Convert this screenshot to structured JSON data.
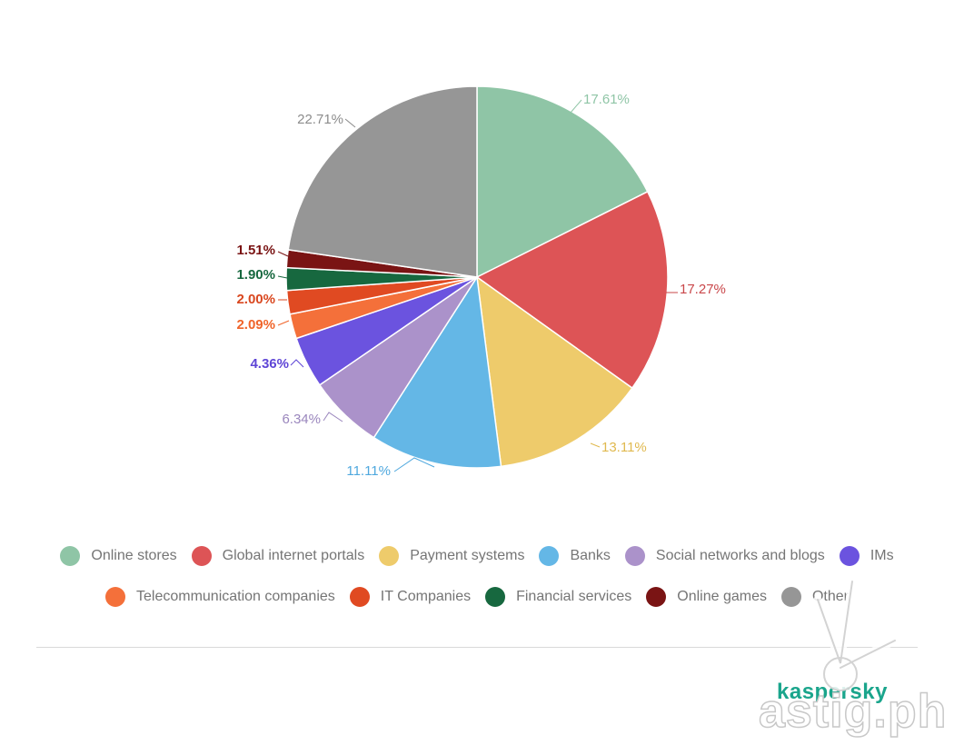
{
  "chart_data": {
    "type": "pie",
    "title": "",
    "slices": [
      {
        "label": "Online stores",
        "value": 17.61,
        "value_label": "17.61%",
        "color": "#8fc5a6",
        "label_color": "#8fc5a6"
      },
      {
        "label": "Global internet portals",
        "value": 17.27,
        "value_label": "17.27%",
        "color": "#dd5456",
        "label_color": "#c9474a"
      },
      {
        "label": "Payment systems",
        "value": 13.11,
        "value_label": "13.11%",
        "color": "#eecb6b",
        "label_color": "#e0b94f"
      },
      {
        "label": "Banks",
        "value": 11.11,
        "value_label": "11.11%",
        "color": "#64b7e6",
        "label_color": "#4fa8de"
      },
      {
        "label": "Social networks and blogs",
        "value": 6.34,
        "value_label": "6.34%",
        "color": "#ab92ca",
        "label_color": "#9a86bd"
      },
      {
        "label": "IMs",
        "value": 4.36,
        "value_label": "4.36%",
        "color": "#6b53df",
        "label_color": "#5e45d6"
      },
      {
        "label": "Telecommunication companies",
        "value": 2.09,
        "value_label": "2.09%",
        "color": "#f4703a",
        "label_color": "#f0642a"
      },
      {
        "label": "IT Companies",
        "value": 2.0,
        "value_label": "2.00%",
        "color": "#e04a22",
        "label_color": "#d9471f"
      },
      {
        "label": "Financial services",
        "value": 1.9,
        "value_label": "1.90%",
        "color": "#17683f",
        "label_color": "#17683f"
      },
      {
        "label": "Online games",
        "value": 1.51,
        "value_label": "1.51%",
        "color": "#7a1414",
        "label_color": "#7a1414"
      },
      {
        "label": "Other",
        "value": 22.71,
        "value_label": "22.71%",
        "color": "#969696",
        "label_color": "#8c8c8c"
      }
    ],
    "legend_position": "bottom"
  },
  "legend": {
    "row1": [
      "Online stores",
      "Global internet portals",
      "Payment systems",
      "Banks",
      "Social networks and blogs",
      "IMs"
    ],
    "row2": [
      "Telecommunication companies",
      "IT Companies",
      "Financial services",
      "Online games",
      "Other"
    ]
  },
  "branding": {
    "logo_text": "kaspersky",
    "watermark_text": "astig.ph"
  }
}
